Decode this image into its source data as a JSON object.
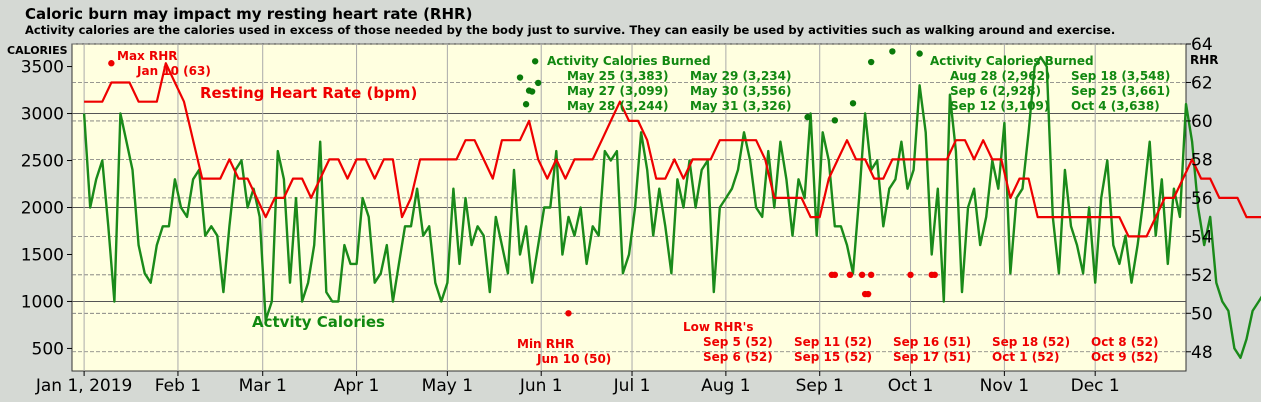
{
  "chart_data": {
    "type": "line",
    "title": "Caloric burn may impact my resting heart rate (RHR)",
    "subtitle": "Activity calories are the calories used in excess of those needed by the body just to survive. They can easily be used by activities such as walking around and exercise.",
    "ylabel_left": "CALORIES",
    "ylabel_right": "RHR",
    "y_left_ticks": [
      "500",
      "1000",
      "1500",
      "2000",
      "2500",
      "3000",
      "3500"
    ],
    "y_right_ticks": [
      "48",
      "50",
      "52",
      "54",
      "56",
      "58",
      "60",
      "62",
      "64"
    ],
    "ylim_left": [
      260,
      3740
    ],
    "ylim_right": [
      47.0,
      64.0
    ],
    "x_tick_labels": [
      "Jan 1, 2019",
      "Feb 1",
      "Mar 1",
      "Apr 1",
      "May 1",
      "Jun 1",
      "Jul 1",
      "Aug 1",
      "Sep 1",
      "Oct 1",
      "Nov 1",
      "Dec 1"
    ],
    "xlim_days": [
      -4,
      364
    ],
    "grid": "dashed horizontal gridlines; vertical gridlines at month starts",
    "background": "#ffffe0",
    "series": [
      {
        "name": "Actvity Calories",
        "axis": "left",
        "color": "#1a8a1a",
        "step": 2,
        "values": [
          3000,
          2000,
          2300,
          2500,
          1800,
          1000,
          3000,
          2700,
          2400,
          1600,
          1300,
          1200,
          1600,
          1800,
          1800,
          2300,
          2000,
          1900,
          2300,
          2400,
          1700,
          1800,
          1700,
          1100,
          1800,
          2400,
          2500,
          2000,
          2200,
          1900,
          800,
          1000,
          2600,
          2300,
          1200,
          2100,
          1000,
          1200,
          1600,
          2700,
          1100,
          1000,
          1000,
          1600,
          1400,
          1400,
          2100,
          1900,
          1200,
          1300,
          1600,
          1000,
          1400,
          1800,
          1800,
          2200,
          1700,
          1800,
          1200,
          1000,
          1200,
          2200,
          1400,
          2100,
          1600,
          1800,
          1700,
          1100,
          1900,
          1600,
          1300,
          2400,
          1500,
          1800,
          1200,
          1600,
          2000,
          2000,
          2600,
          1500,
          1900,
          1700,
          2000,
          1400,
          1800,
          1700,
          2600,
          2500,
          2600,
          1300,
          1500,
          2000,
          2800,
          2400,
          1700,
          2200,
          1800,
          1300,
          2300,
          2000,
          2500,
          2000,
          2400,
          2500,
          1100,
          2000,
          2100,
          2200,
          2400,
          2800,
          2500,
          2000,
          1900,
          2600,
          2000,
          2700,
          2300,
          1700,
          2300,
          2100,
          3000,
          1700,
          2800,
          2500,
          1800,
          1800,
          1600,
          1300,
          2100,
          3000,
          2400,
          2500,
          1800,
          2200,
          2300,
          2700,
          2200,
          2400,
          3300,
          2800,
          1500,
          2200,
          1000,
          3200,
          2600,
          1100,
          2000,
          2200,
          1600,
          1900,
          2500,
          2200,
          2900,
          1300,
          2100,
          2200,
          2800,
          3500,
          3600,
          3500,
          1900,
          1300,
          2400,
          1800,
          1600,
          1300,
          2000,
          1200,
          2100,
          2500,
          1600,
          1400,
          1700,
          1200,
          1600,
          2100,
          2700,
          1700,
          2300,
          1400,
          2200,
          1900,
          3100,
          2700,
          2000,
          1600,
          1900,
          1200,
          1000,
          900,
          500,
          400,
          600,
          900,
          1000,
          1100,
          800,
          1000,
          1500,
          1700,
          1200,
          1500,
          1400,
          2200,
          2600,
          2300,
          1600,
          1200,
          1300,
          1700,
          1900,
          2100,
          2000,
          1400,
          1400,
          1800,
          1700,
          1500,
          1200,
          1900,
          2300,
          2300,
          1900,
          1700,
          1700,
          2800,
          1500,
          1600,
          2200,
          2000,
          2600,
          1900,
          2200,
          1400,
          2300,
          1900,
          1700,
          2400,
          2700,
          1800,
          1400,
          2000,
          1600,
          1800,
          2600,
          2300,
          2100,
          1900,
          2100,
          1700,
          1900,
          1300,
          1600,
          1400,
          1800,
          1000,
          1500,
          2900,
          1300,
          1000,
          1600,
          1100,
          1000,
          2900,
          1600,
          1900,
          1000,
          1600,
          1500,
          2300,
          1200,
          1600,
          2000,
          1500,
          3100,
          1200,
          1100,
          1600,
          1000,
          2300,
          1300,
          3500,
          1000,
          1400,
          1600,
          1500,
          2000,
          1500,
          1500,
          3600,
          1300,
          2100,
          1200,
          1900,
          1200,
          1300,
          1600,
          2800,
          1400,
          1100,
          1800,
          1400,
          1000,
          1300,
          1300,
          1600,
          1300,
          1600,
          1200,
          1800,
          2600,
          2300,
          2200,
          1100,
          1000,
          2800,
          1400,
          1000,
          1200,
          1100,
          1300,
          1500,
          1200,
          1300,
          1100,
          1600,
          1500,
          1300,
          1900,
          1100,
          1200,
          1500,
          1400,
          1800,
          1100,
          1200,
          1300,
          1700,
          1600,
          1600,
          1100,
          1500,
          1200,
          1400,
          1800,
          1900,
          1700,
          1400,
          1400,
          1700,
          1500,
          1100,
          1000,
          1400,
          1600,
          1800,
          2000,
          1800,
          1400,
          1100,
          950,
          1100,
          1400
        ]
      },
      {
        "name": "Resting Heart Rate (bpm)",
        "axis": "right",
        "color": "#ee0000",
        "step": 3,
        "values": [
          61,
          61,
          61,
          62,
          62,
          62,
          61,
          61,
          61,
          63,
          62,
          61,
          59,
          57,
          57,
          57,
          58,
          57,
          57,
          56,
          55,
          56,
          56,
          57,
          57,
          56,
          57,
          58,
          58,
          57,
          58,
          58,
          57,
          58,
          58,
          55,
          56,
          58,
          58,
          58,
          58,
          58,
          59,
          59,
          58,
          57,
          59,
          59,
          59,
          60,
          58,
          57,
          58,
          57,
          58,
          58,
          58,
          59,
          60,
          61,
          60,
          60,
          59,
          57,
          57,
          58,
          57,
          58,
          58,
          58,
          59,
          59,
          59,
          59,
          59,
          58,
          56,
          56,
          56,
          56,
          55,
          55,
          57,
          58,
          59,
          58,
          58,
          57,
          57,
          58,
          58,
          58,
          58,
          58,
          58,
          58,
          59,
          59,
          58,
          59,
          58,
          58,
          56,
          57,
          57,
          55,
          55,
          55,
          55,
          55,
          55,
          55,
          55,
          55,
          55,
          54,
          54,
          54,
          55,
          56,
          56,
          57,
          58,
          57,
          57,
          56,
          56,
          56,
          55,
          55,
          55,
          55,
          56,
          56,
          56,
          55,
          55,
          56,
          58,
          58,
          57,
          56,
          54,
          53,
          53,
          54,
          54,
          56,
          55,
          51,
          52,
          53,
          54,
          54,
          54,
          55,
          56,
          57,
          58,
          58,
          57,
          56,
          55,
          56,
          57,
          55,
          56,
          56,
          55,
          57,
          55,
          53,
          53,
          53,
          56,
          58,
          58,
          57,
          53,
          53,
          53,
          53,
          52,
          54,
          54,
          54,
          54,
          54,
          54,
          54,
          55,
          55,
          55,
          56,
          54,
          53,
          54,
          55,
          55,
          55,
          55,
          55,
          56,
          56,
          55,
          54,
          55,
          55,
          55,
          56,
          54,
          54,
          55,
          55,
          54,
          53,
          54,
          54,
          56,
          54,
          55,
          55,
          56,
          56,
          55,
          56,
          54,
          54,
          54,
          55,
          54,
          54,
          55,
          56,
          56,
          56,
          55,
          58,
          60,
          58,
          56,
          56,
          56,
          55,
          56,
          56,
          56,
          57,
          55,
          55,
          55,
          55,
          52,
          52,
          52,
          52,
          54,
          54,
          54,
          53,
          53,
          52,
          54,
          52,
          52,
          52,
          53,
          53,
          53,
          51,
          51,
          51,
          52,
          52,
          53,
          53,
          54,
          54,
          54,
          54,
          54,
          54,
          55,
          56,
          56,
          58,
          59,
          60,
          57,
          56,
          55,
          54,
          53,
          53,
          52,
          52,
          52,
          55,
          56,
          56,
          55,
          55,
          53,
          52,
          52,
          52,
          53,
          53,
          55,
          55,
          54,
          55,
          54,
          55,
          55,
          53,
          54,
          53,
          53,
          54,
          55,
          56,
          56,
          56,
          56,
          54,
          54,
          54,
          54,
          54,
          54,
          54,
          54,
          54,
          53,
          53,
          53,
          54,
          53,
          54,
          53,
          53,
          53,
          52,
          52,
          52,
          52,
          53,
          54,
          55,
          55,
          55,
          54,
          54,
          54,
          54,
          54,
          55,
          55,
          54,
          54,
          55,
          54,
          54,
          53,
          56,
          57,
          57,
          57,
          57,
          57,
          57,
          57,
          57,
          56,
          56,
          55,
          54,
          55,
          55,
          55,
          56,
          56,
          56,
          56,
          57,
          57,
          58,
          57,
          57,
          58,
          58
        ]
      }
    ],
    "markers": {
      "green_dots": [
        {
          "date": "May 25",
          "value": 3383
        },
        {
          "date": "May 27",
          "value": 3099
        },
        {
          "date": "May 28",
          "value": 3244
        },
        {
          "date": "May 29",
          "value": 3234
        },
        {
          "date": "May 30",
          "value": 3556
        },
        {
          "date": "May 31",
          "value": 3326
        },
        {
          "date": "Aug 28",
          "value": 2962
        },
        {
          "date": "Sep 6",
          "value": 2928
        },
        {
          "date": "Sep 12",
          "value": 3109
        },
        {
          "date": "Sep 18",
          "value": 3548
        },
        {
          "date": "Sep 25",
          "value": 3661
        },
        {
          "date": "Oct 4",
          "value": 3638
        }
      ],
      "red_dots": [
        {
          "date": "Jan 10",
          "value": 63
        },
        {
          "date": "Jun 10",
          "value": 50
        },
        {
          "date": "Sep 5",
          "value": 52
        },
        {
          "date": "Sep 6",
          "value": 52
        },
        {
          "date": "Sep 11",
          "value": 52
        },
        {
          "date": "Sep 15",
          "value": 52
        },
        {
          "date": "Sep 16",
          "value": 51
        },
        {
          "date": "Sep 17",
          "value": 51
        },
        {
          "date": "Sep 18",
          "value": 52
        },
        {
          "date": "Oct 1",
          "value": 52
        },
        {
          "date": "Oct 8",
          "value": 52
        },
        {
          "date": "Oct 9",
          "value": 52
        }
      ]
    },
    "annotations": {
      "max_rhr": [
        "Max RHR",
        "Jan 10 (63)"
      ],
      "min_rhr": [
        "Min RHR",
        "Jun 10 (50)"
      ],
      "low_rhr_title": "Low RHR's",
      "low_rhr_col1": [
        "Sep 5 (52)",
        "Sep 6 (52)"
      ],
      "low_rhr_col2": [
        "Sep 11 (52)",
        "Sep 15 (52)"
      ],
      "low_rhr_col3": [
        "Sep 16 (51)",
        "Sep 17 (51)"
      ],
      "low_rhr_col4": [
        "Sep 18 (52)",
        "Oct 1 (52)"
      ],
      "low_rhr_col5": [
        "Oct 8 (52)",
        "Oct 9 (52)"
      ],
      "acb1_title": "Activity Calories Burned",
      "acb1_col1": [
        "May 25 (3,383)",
        "May 27 (3,099)",
        "May 28 (3,244)"
      ],
      "acb1_col2": [
        "May 29 (3,234)",
        "May 30 (3,556)",
        "May 31 (3,326)"
      ],
      "acb2_title": "Activity Calories Burned",
      "acb2_col1": [
        "Aug 28 (2,962)",
        "Sep 6 (2,928)",
        "Sep 12 (3,109)"
      ],
      "acb2_col2": [
        "Sep 18 (3,548)",
        "Sep 25 (3,661)",
        "Oct 4 (3,638)"
      ],
      "rhr_label": "Resting Heart Rate (bpm)",
      "cal_label": "Actvity Calories"
    }
  }
}
